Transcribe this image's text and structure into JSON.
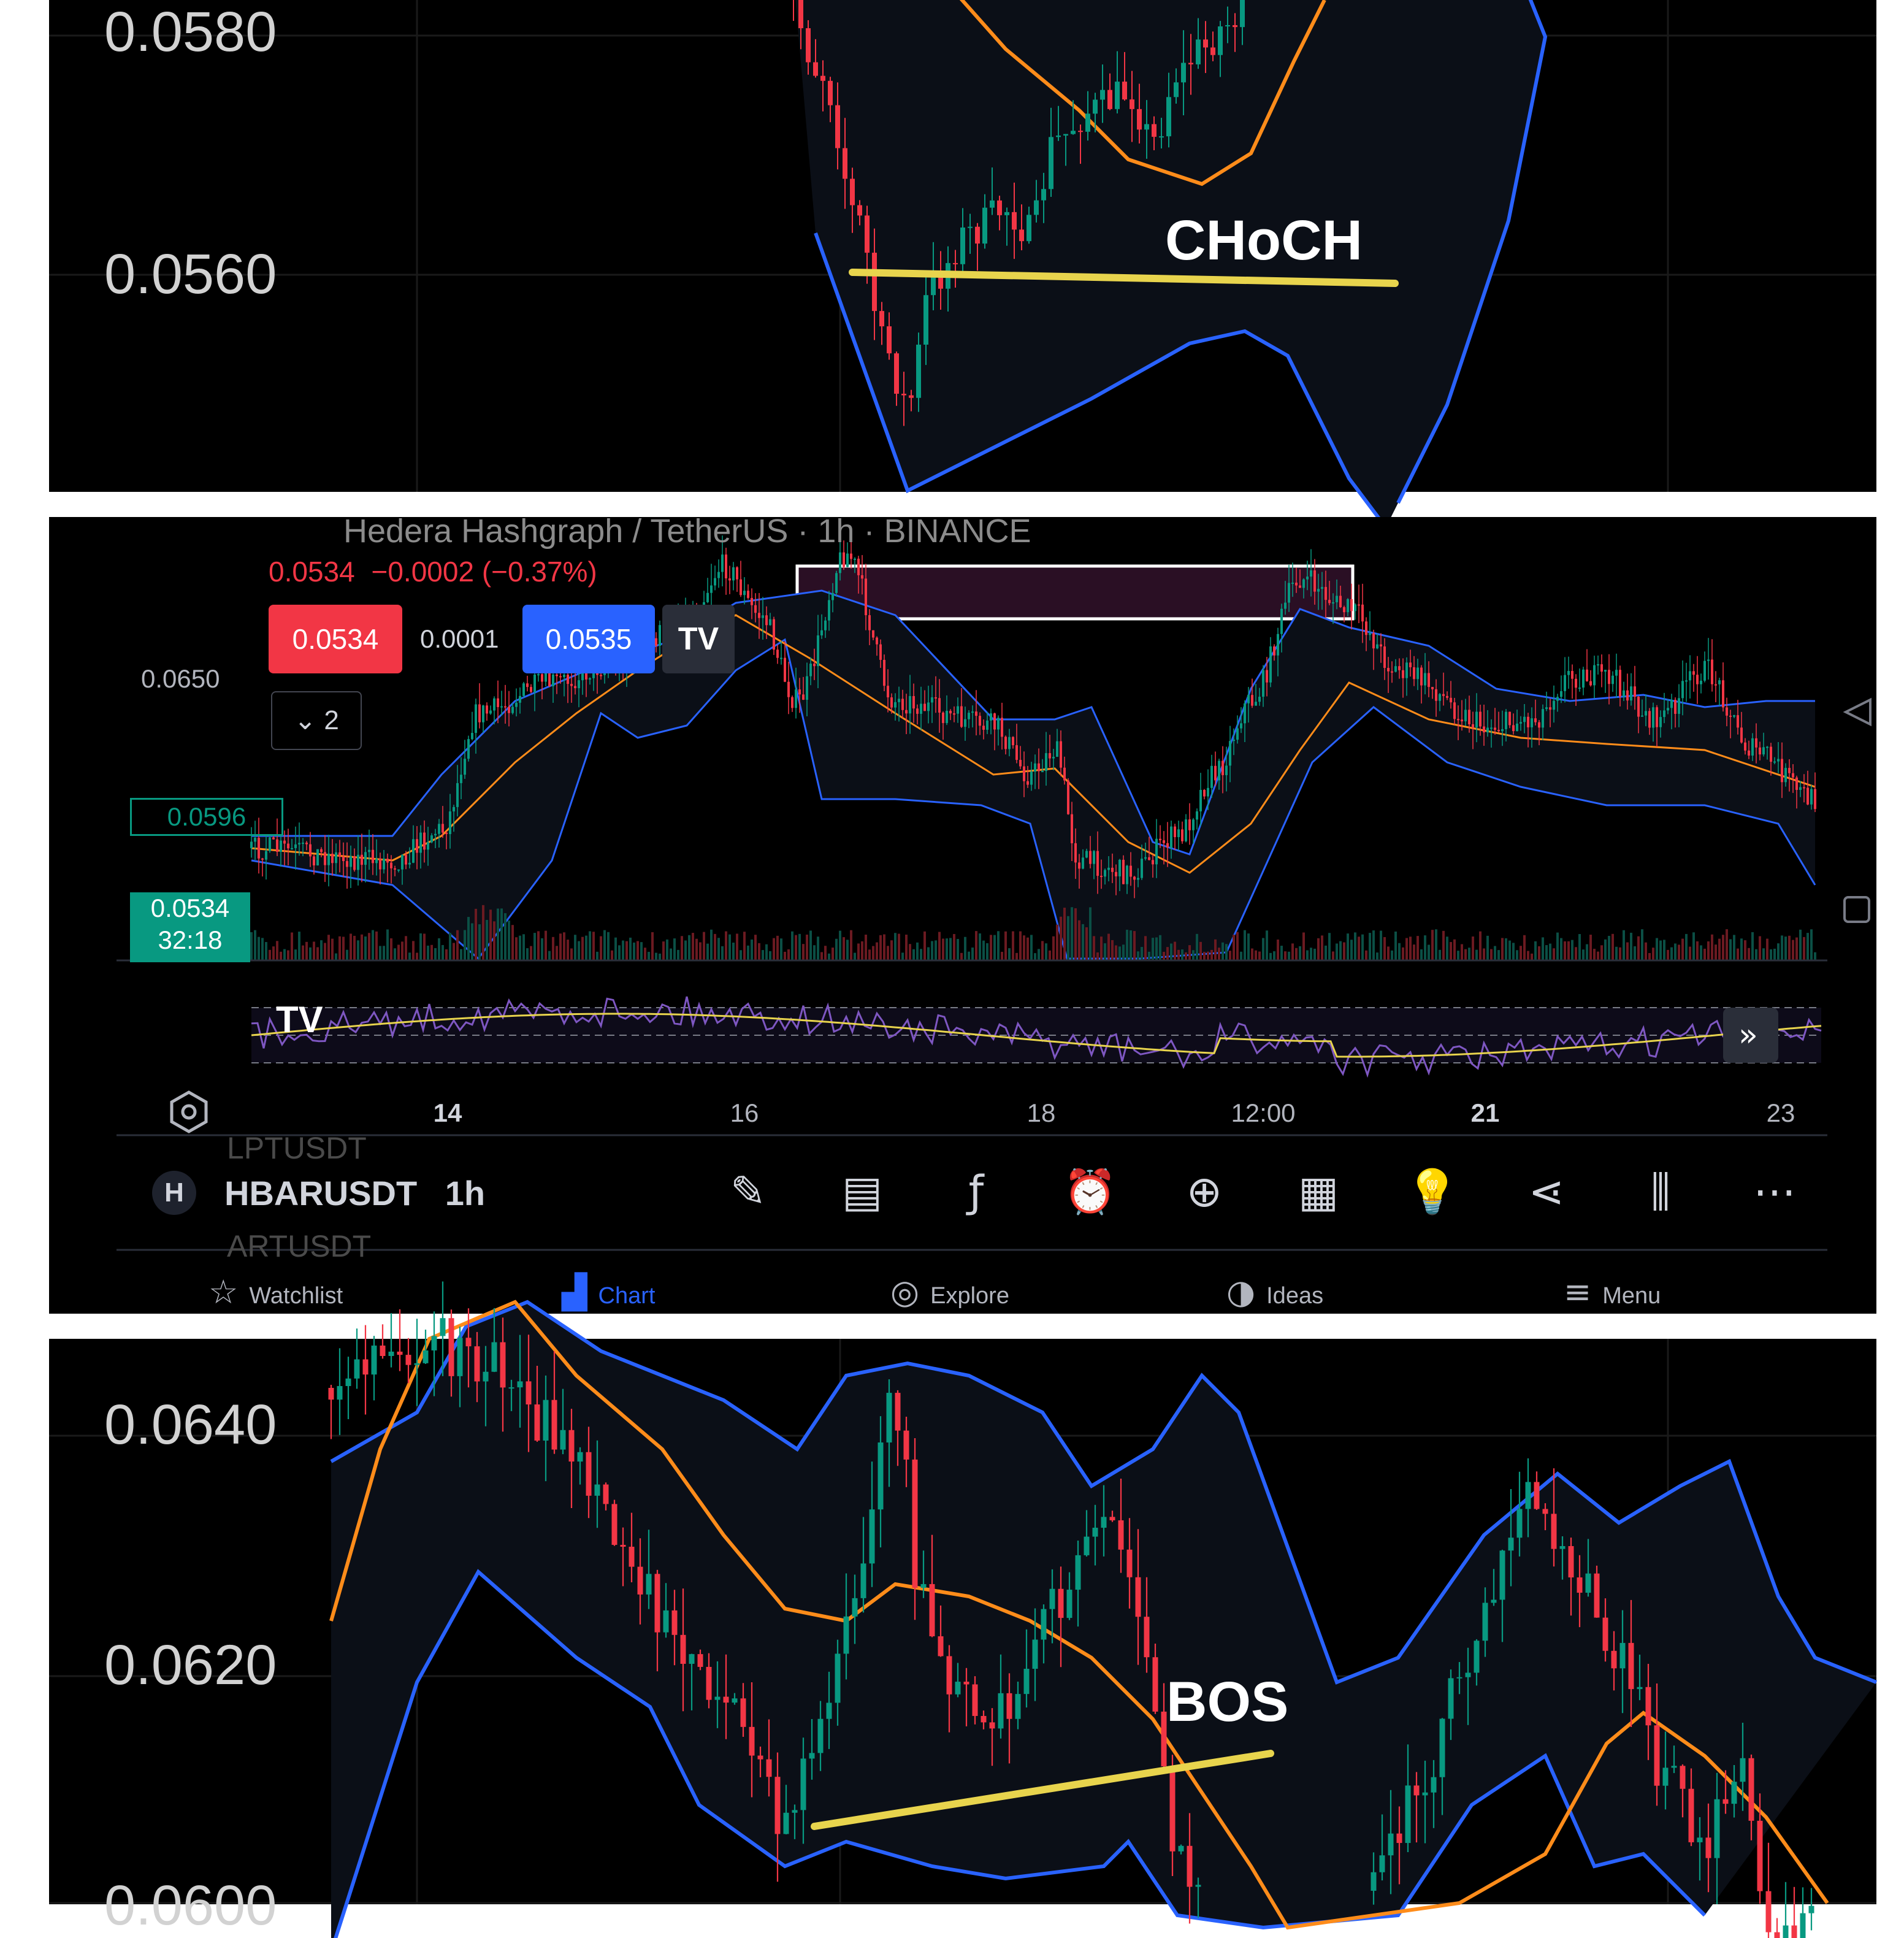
{
  "top_panel": {
    "price_labels": [
      "0.0580",
      "0.0560"
    ],
    "annotation": "CHoCH"
  },
  "middle_panel": {
    "header": {
      "symbol_title": "Hedera Hashgraph / TetherUS · 1h · BINANCE",
      "last_price": "0.0534",
      "change": "−0.0002 (−0.37%)"
    },
    "order": {
      "sell_price": "0.0534",
      "spread": "0.0001",
      "buy_price": "0.0535",
      "indicator_count": "2"
    },
    "price_axis": {
      "label_top": "0.0650",
      "marked_price": "0.0596",
      "current_price": "0.0534",
      "countdown": "32:18"
    },
    "time_axis": [
      {
        "label": "14",
        "bold": true
      },
      {
        "label": "16",
        "bold": false
      },
      {
        "label": "18",
        "bold": false
      },
      {
        "label": "12:00",
        "bold": false
      },
      {
        "label": "21",
        "bold": true
      },
      {
        "label": "23",
        "bold": false
      }
    ],
    "toolbar": {
      "symbol": "HBARUSDT",
      "interval": "1h",
      "ghost_above": "LPTUSDT",
      "ghost_below": "ARTUSDT",
      "icons": [
        "pencil-icon",
        "note-icon",
        "function-icon",
        "alarm-icon",
        "plus-circle-icon",
        "grid-icon",
        "lightbulb-icon",
        "share-icon",
        "candle-icon",
        "more-icon"
      ]
    },
    "bottom_nav": [
      {
        "label": "Watchlist",
        "icon": "star-icon",
        "active": false
      },
      {
        "label": "Chart",
        "icon": "chart-icon",
        "active": true
      },
      {
        "label": "Explore",
        "icon": "compass-icon",
        "active": false
      },
      {
        "label": "Ideas",
        "icon": "ideas-icon",
        "active": false
      },
      {
        "label": "Menu",
        "icon": "menu-icon",
        "active": false
      }
    ],
    "colors": {
      "up": "#089981",
      "down": "#f23645",
      "band": "#2962ff",
      "basis": "#ff8c1a",
      "rsi": "#7e57c2",
      "rsi_ma": "#e8d44d",
      "order_block": "#2a0f24"
    }
  },
  "bottom_panel": {
    "price_labels": [
      "0.0640",
      "0.0620",
      "0.0600"
    ],
    "annotation": "BOS"
  }
}
